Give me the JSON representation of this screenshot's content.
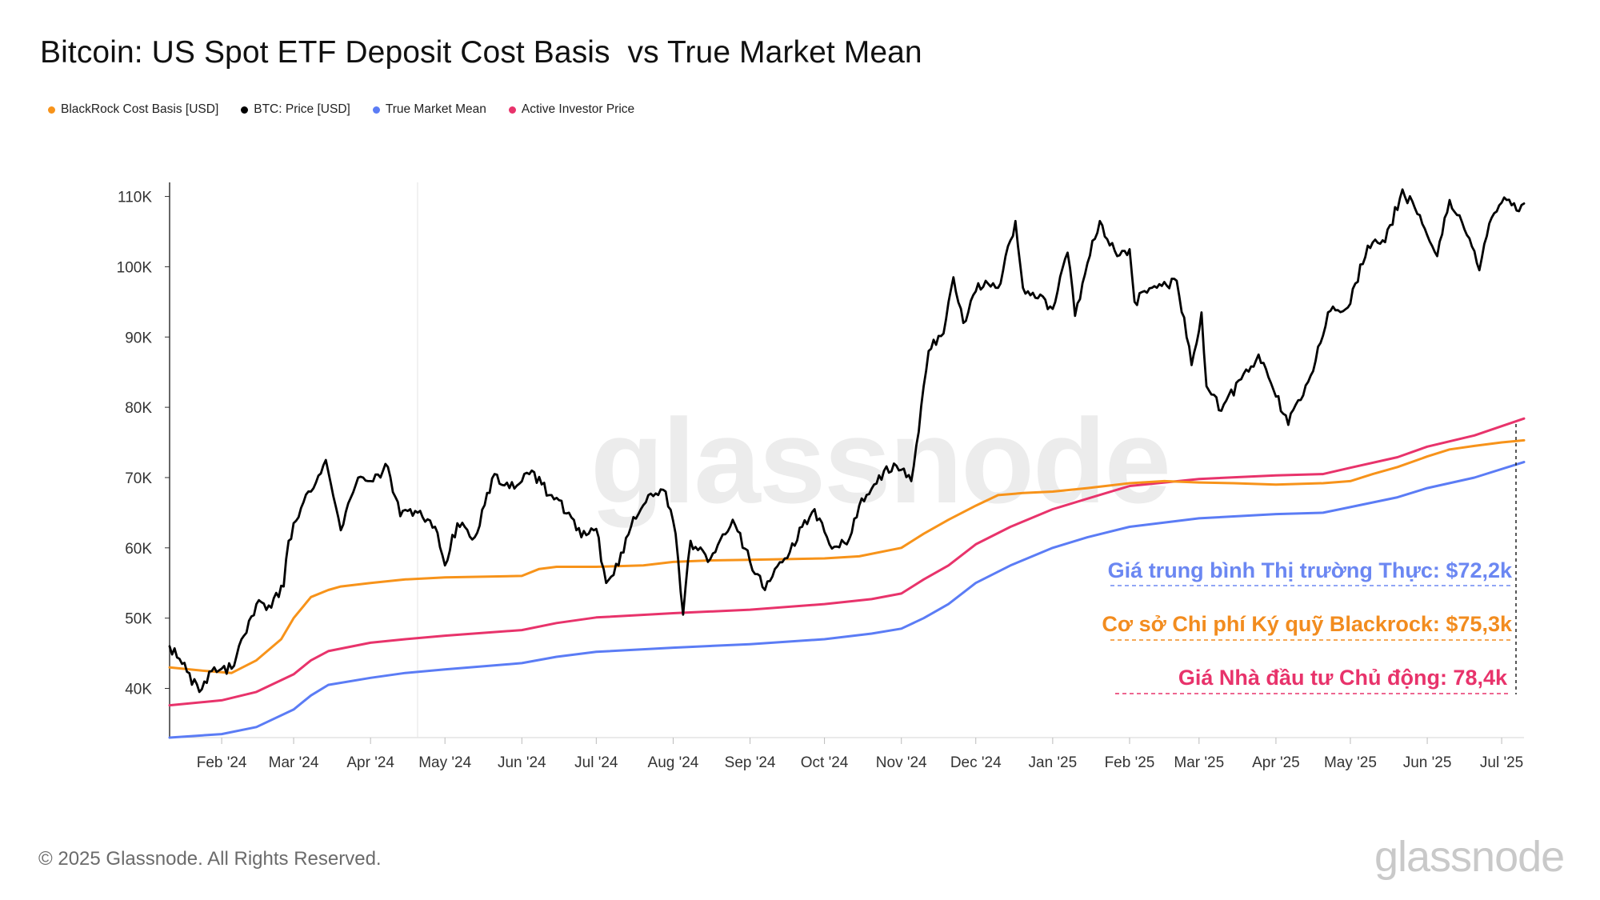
{
  "title": "Bitcoin: US Spot ETF Deposit Cost Basis  vs True Market Mean",
  "legend": [
    {
      "label": "BlackRock Cost Basis [USD]",
      "color": "#f7931a"
    },
    {
      "label": "BTC: Price [USD]",
      "color": "#000000"
    },
    {
      "label": "True Market Mean",
      "color": "#5b7cf5"
    },
    {
      "label": "Active Investor Price",
      "color": "#e8336b"
    }
  ],
  "watermark": "glassnode",
  "footer": {
    "copyright": "© 2025 Glassnode. All Rights Reserved.",
    "brand": "glassnode"
  },
  "annotations": {
    "true_market_mean": "Giá trung bình Thị trường Thực: $72,2k",
    "blackrock": "Cơ sở Chi phí Ký quỹ Blackrock: $75,3k",
    "active_investor": "Giá Nhà đầu tư Chủ động: 78,4k"
  },
  "chart_data": {
    "type": "line",
    "title": "Bitcoin: US Spot ETF Deposit Cost Basis  vs True Market Mean",
    "x_axis": {
      "type": "date",
      "range": [
        "2024-01-11",
        "2025-07-10"
      ],
      "tick_labels": [
        "Feb '24",
        "Mar '24",
        "Apr '24",
        "May '24",
        "Jun '24",
        "Jul '24",
        "Aug '24",
        "Sep '24",
        "Oct '24",
        "Nov '24",
        "Dec '24",
        "Jan '25",
        "Feb '25",
        "Mar '25",
        "Apr '25",
        "May '25",
        "Jun '25",
        "Jul '25"
      ],
      "tick_dates": [
        "2024-02-01",
        "2024-03-01",
        "2024-04-01",
        "2024-05-01",
        "2024-06-01",
        "2024-07-01",
        "2024-08-01",
        "2024-09-01",
        "2024-10-01",
        "2024-11-01",
        "2024-12-01",
        "2025-01-01",
        "2025-02-01",
        "2025-03-01",
        "2025-04-01",
        "2025-05-01",
        "2025-06-01",
        "2025-07-01"
      ]
    },
    "y_axis": {
      "range": [
        33000,
        112000
      ],
      "ticks": [
        40000,
        50000,
        60000,
        70000,
        80000,
        90000,
        100000,
        110000
      ],
      "tick_labels": [
        "40K",
        "50K",
        "60K",
        "70K",
        "80K",
        "90K",
        "100K",
        "110K"
      ]
    },
    "grid": false,
    "legend_position": "top-left",
    "series": [
      {
        "name": "BlackRock Cost Basis [USD]",
        "color": "#f7931a",
        "points": [
          [
            "2024-01-11",
            43000
          ],
          [
            "2024-01-25",
            42500
          ],
          [
            "2024-02-05",
            42200
          ],
          [
            "2024-02-15",
            44000
          ],
          [
            "2024-02-25",
            47000
          ],
          [
            "2024-03-01",
            50000
          ],
          [
            "2024-03-08",
            53000
          ],
          [
            "2024-03-15",
            54000
          ],
          [
            "2024-03-20",
            54500
          ],
          [
            "2024-04-01",
            55000
          ],
          [
            "2024-04-15",
            55500
          ],
          [
            "2024-05-01",
            55800
          ],
          [
            "2024-06-01",
            56000
          ],
          [
            "2024-06-08",
            57000
          ],
          [
            "2024-06-15",
            57300
          ],
          [
            "2024-07-01",
            57300
          ],
          [
            "2024-07-20",
            57500
          ],
          [
            "2024-08-01",
            58000
          ],
          [
            "2024-08-15",
            58200
          ],
          [
            "2024-09-01",
            58300
          ],
          [
            "2024-10-01",
            58500
          ],
          [
            "2024-10-15",
            58800
          ],
          [
            "2024-11-01",
            60000
          ],
          [
            "2024-11-10",
            62000
          ],
          [
            "2024-11-20",
            64000
          ],
          [
            "2024-12-01",
            66000
          ],
          [
            "2024-12-10",
            67500
          ],
          [
            "2024-12-20",
            67800
          ],
          [
            "2025-01-01",
            68000
          ],
          [
            "2025-01-15",
            68500
          ],
          [
            "2025-02-01",
            69200
          ],
          [
            "2025-02-15",
            69500
          ],
          [
            "2025-03-01",
            69300
          ],
          [
            "2025-03-15",
            69200
          ],
          [
            "2025-04-01",
            69000
          ],
          [
            "2025-04-20",
            69200
          ],
          [
            "2025-05-01",
            69500
          ],
          [
            "2025-05-10",
            70500
          ],
          [
            "2025-05-20",
            71500
          ],
          [
            "2025-06-01",
            73000
          ],
          [
            "2025-06-10",
            74000
          ],
          [
            "2025-06-20",
            74500
          ],
          [
            "2025-07-01",
            75000
          ],
          [
            "2025-07-10",
            75300
          ]
        ]
      },
      {
        "name": "BTC: Price [USD]",
        "color": "#000000",
        "points": [
          [
            "2024-01-11",
            46000
          ],
          [
            "2024-01-16",
            43500
          ],
          [
            "2024-01-23",
            39500
          ],
          [
            "2024-01-29",
            43000
          ],
          [
            "2024-02-05",
            42800
          ],
          [
            "2024-02-10",
            47500
          ],
          [
            "2024-02-15",
            52000
          ],
          [
            "2024-02-20",
            51800
          ],
          [
            "2024-02-26",
            54500
          ],
          [
            "2024-02-28",
            61000
          ],
          [
            "2024-03-05",
            66500
          ],
          [
            "2024-03-08",
            68000
          ],
          [
            "2024-03-14",
            72500
          ],
          [
            "2024-03-20",
            62500
          ],
          [
            "2024-03-27",
            70000
          ],
          [
            "2024-04-01",
            69500
          ],
          [
            "2024-04-08",
            71500
          ],
          [
            "2024-04-13",
            64500
          ],
          [
            "2024-04-20",
            65000
          ],
          [
            "2024-04-27",
            63000
          ],
          [
            "2024-05-01",
            57500
          ],
          [
            "2024-05-06",
            63500
          ],
          [
            "2024-05-13",
            61500
          ],
          [
            "2024-05-21",
            70500
          ],
          [
            "2024-05-27",
            68500
          ],
          [
            "2024-06-05",
            71000
          ],
          [
            "2024-06-12",
            67500
          ],
          [
            "2024-06-20",
            65000
          ],
          [
            "2024-06-25",
            61500
          ],
          [
            "2024-07-01",
            62700
          ],
          [
            "2024-07-05",
            55000
          ],
          [
            "2024-07-10",
            57500
          ],
          [
            "2024-07-15",
            63000
          ],
          [
            "2024-07-22",
            67500
          ],
          [
            "2024-07-29",
            68000
          ],
          [
            "2024-08-02",
            62000
          ],
          [
            "2024-08-05",
            50500
          ],
          [
            "2024-08-08",
            61000
          ],
          [
            "2024-08-15",
            58000
          ],
          [
            "2024-08-25",
            64000
          ],
          [
            "2024-09-01",
            58000
          ],
          [
            "2024-09-07",
            54000
          ],
          [
            "2024-09-15",
            58500
          ],
          [
            "2024-09-22",
            63000
          ],
          [
            "2024-09-27",
            65500
          ],
          [
            "2024-10-03",
            60500
          ],
          [
            "2024-10-10",
            60500
          ],
          [
            "2024-10-15",
            66000
          ],
          [
            "2024-10-21",
            69000
          ],
          [
            "2024-10-29",
            72000
          ],
          [
            "2024-11-05",
            69500
          ],
          [
            "2024-11-08",
            76500
          ],
          [
            "2024-11-12",
            88000
          ],
          [
            "2024-11-18",
            90500
          ],
          [
            "2024-11-22",
            98500
          ],
          [
            "2024-11-26",
            92000
          ],
          [
            "2024-12-01",
            96500
          ],
          [
            "2024-12-05",
            98000
          ],
          [
            "2024-12-10",
            97000
          ],
          [
            "2024-12-17",
            106500
          ],
          [
            "2024-12-20",
            97000
          ],
          [
            "2024-12-26",
            95500
          ],
          [
            "2025-01-01",
            94000
          ],
          [
            "2025-01-07",
            102000
          ],
          [
            "2025-01-10",
            93000
          ],
          [
            "2025-01-15",
            100500
          ],
          [
            "2025-01-20",
            106500
          ],
          [
            "2025-01-27",
            101500
          ],
          [
            "2025-02-01",
            102500
          ],
          [
            "2025-02-03",
            95000
          ],
          [
            "2025-02-10",
            97000
          ],
          [
            "2025-02-20",
            98000
          ],
          [
            "2025-02-26",
            86000
          ],
          [
            "2025-03-02",
            93500
          ],
          [
            "2025-03-04",
            83000
          ],
          [
            "2025-03-10",
            79500
          ],
          [
            "2025-03-18",
            84000
          ],
          [
            "2025-03-25",
            87500
          ],
          [
            "2025-03-31",
            82500
          ],
          [
            "2025-04-06",
            77500
          ],
          [
            "2025-04-10",
            81000
          ],
          [
            "2025-04-15",
            84500
          ],
          [
            "2025-04-22",
            93500
          ],
          [
            "2025-04-30",
            94200
          ],
          [
            "2025-05-08",
            103000
          ],
          [
            "2025-05-15",
            103500
          ],
          [
            "2025-05-22",
            111000
          ],
          [
            "2025-05-28",
            107500
          ],
          [
            "2025-06-05",
            101500
          ],
          [
            "2025-06-10",
            109500
          ],
          [
            "2025-06-17",
            104500
          ],
          [
            "2025-06-22",
            99500
          ],
          [
            "2025-06-27",
            107000
          ],
          [
            "2025-07-03",
            109500
          ],
          [
            "2025-07-07",
            108000
          ],
          [
            "2025-07-10",
            109000
          ]
        ]
      },
      {
        "name": "True Market Mean",
        "color": "#5b7cf5",
        "points": [
          [
            "2024-01-11",
            33000
          ],
          [
            "2024-02-01",
            33500
          ],
          [
            "2024-02-15",
            34500
          ],
          [
            "2024-03-01",
            37000
          ],
          [
            "2024-03-08",
            39000
          ],
          [
            "2024-03-15",
            40500
          ],
          [
            "2024-04-01",
            41500
          ],
          [
            "2024-04-15",
            42200
          ],
          [
            "2024-05-01",
            42700
          ],
          [
            "2024-06-01",
            43600
          ],
          [
            "2024-06-15",
            44500
          ],
          [
            "2024-07-01",
            45200
          ],
          [
            "2024-08-01",
            45800
          ],
          [
            "2024-09-01",
            46300
          ],
          [
            "2024-10-01",
            47000
          ],
          [
            "2024-10-20",
            47800
          ],
          [
            "2024-11-01",
            48500
          ],
          [
            "2024-11-10",
            50000
          ],
          [
            "2024-11-20",
            52000
          ],
          [
            "2024-12-01",
            55000
          ],
          [
            "2024-12-15",
            57500
          ],
          [
            "2025-01-01",
            60000
          ],
          [
            "2025-01-15",
            61500
          ],
          [
            "2025-02-01",
            63000
          ],
          [
            "2025-03-01",
            64200
          ],
          [
            "2025-04-01",
            64800
          ],
          [
            "2025-04-20",
            65000
          ],
          [
            "2025-05-01",
            65800
          ],
          [
            "2025-05-20",
            67200
          ],
          [
            "2025-06-01",
            68500
          ],
          [
            "2025-06-20",
            70000
          ],
          [
            "2025-07-10",
            72200
          ]
        ]
      },
      {
        "name": "Active Investor Price",
        "color": "#e8336b",
        "points": [
          [
            "2024-01-11",
            37600
          ],
          [
            "2024-02-01",
            38300
          ],
          [
            "2024-02-15",
            39500
          ],
          [
            "2024-03-01",
            42000
          ],
          [
            "2024-03-08",
            44000
          ],
          [
            "2024-03-15",
            45300
          ],
          [
            "2024-04-01",
            46500
          ],
          [
            "2024-04-15",
            47000
          ],
          [
            "2024-05-01",
            47500
          ],
          [
            "2024-06-01",
            48300
          ],
          [
            "2024-06-15",
            49300
          ],
          [
            "2024-07-01",
            50100
          ],
          [
            "2024-08-01",
            50700
          ],
          [
            "2024-09-01",
            51200
          ],
          [
            "2024-10-01",
            52000
          ],
          [
            "2024-10-20",
            52700
          ],
          [
            "2024-11-01",
            53500
          ],
          [
            "2024-11-10",
            55500
          ],
          [
            "2024-11-20",
            57500
          ],
          [
            "2024-12-01",
            60500
          ],
          [
            "2024-12-15",
            63000
          ],
          [
            "2025-01-01",
            65500
          ],
          [
            "2025-01-15",
            67000
          ],
          [
            "2025-02-01",
            68800
          ],
          [
            "2025-03-01",
            69800
          ],
          [
            "2025-04-01",
            70300
          ],
          [
            "2025-04-20",
            70500
          ],
          [
            "2025-05-01",
            71400
          ],
          [
            "2025-05-20",
            72900
          ],
          [
            "2025-06-01",
            74400
          ],
          [
            "2025-06-20",
            76000
          ],
          [
            "2025-07-10",
            78400
          ]
        ]
      }
    ]
  }
}
